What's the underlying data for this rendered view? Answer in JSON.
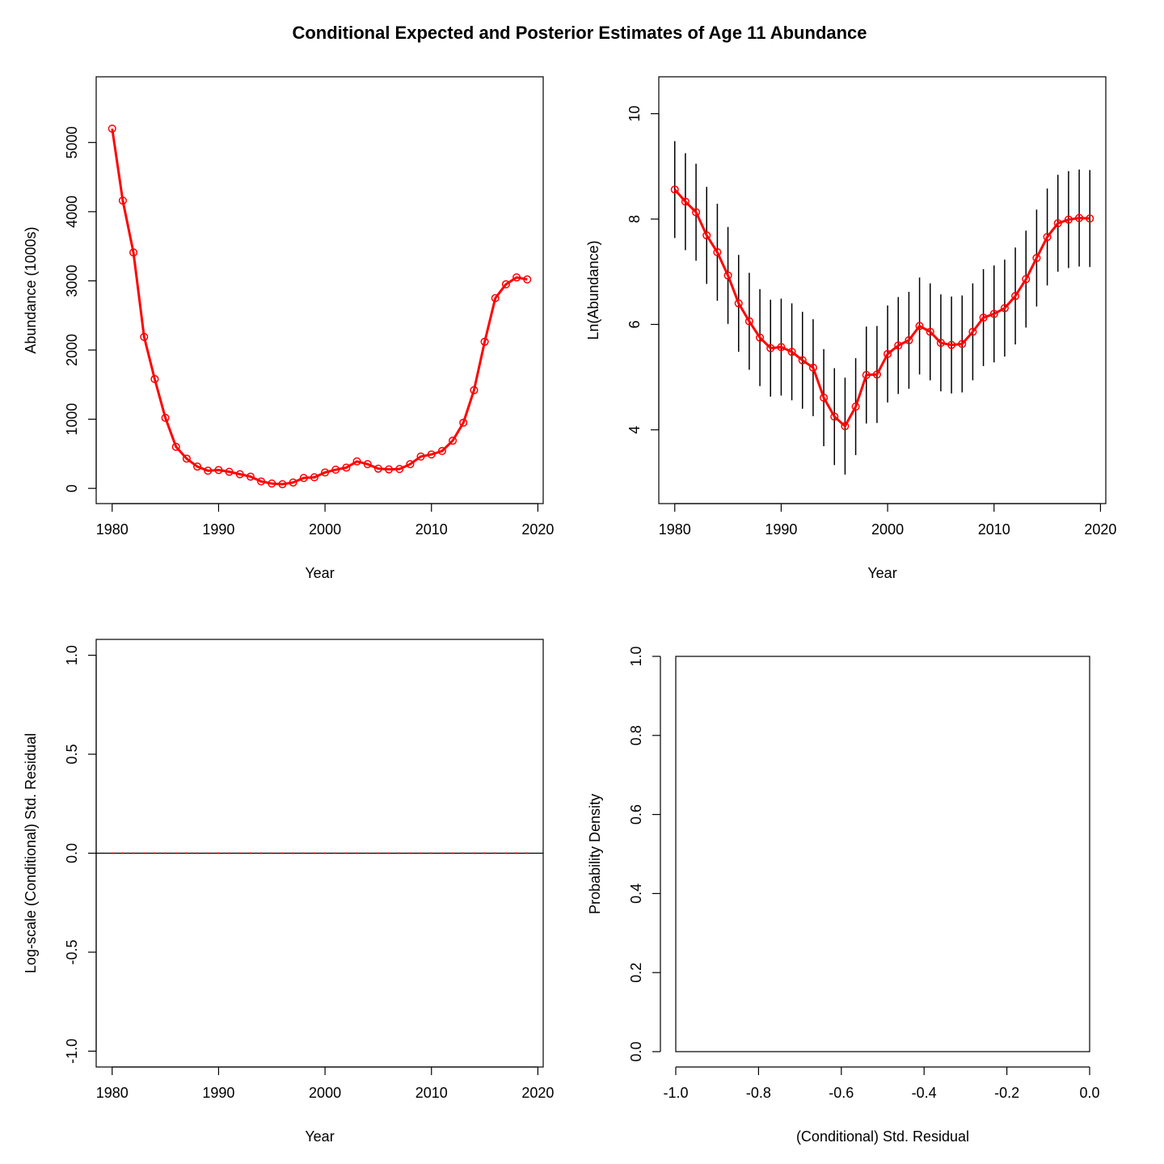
{
  "title": "Conditional Expected and Posterior Estimates of Age 11 Abundance",
  "chart_data": [
    {
      "type": "line",
      "xlabel": "Year",
      "ylabel": "Abundance (1000s)",
      "xlim": [
        1978.5,
        2020.5
      ],
      "ylim": [
        -220,
        5950
      ],
      "xticks": [
        1980,
        1990,
        2000,
        2010,
        2020
      ],
      "yticks": [
        0,
        1000,
        2000,
        3000,
        4000,
        5000
      ],
      "series": [
        {
          "color": "#ff0000",
          "x": [
            1980,
            1981,
            1982,
            1983,
            1984,
            1985,
            1986,
            1987,
            1988,
            1989,
            1990,
            1991,
            1992,
            1993,
            1994,
            1995,
            1996,
            1997,
            1998,
            1999,
            2000,
            2001,
            2002,
            2003,
            2004,
            2005,
            2006,
            2007,
            2008,
            2009,
            2010,
            2011,
            2012,
            2013,
            2014,
            2015,
            2016,
            2017,
            2018,
            2019
          ],
          "y": [
            5200,
            4160,
            3410,
            2190,
            1580,
            1020,
            600,
            430,
            315,
            255,
            265,
            240,
            205,
            170,
            100,
            70,
            60,
            85,
            150,
            160,
            230,
            270,
            300,
            390,
            350,
            285,
            275,
            280,
            350,
            460,
            490,
            540,
            690,
            950,
            1420,
            2120,
            2750,
            2950,
            3050,
            3020
          ]
        }
      ]
    },
    {
      "type": "line",
      "xlabel": "Year",
      "ylabel": "Ln(Abundance)",
      "xlim": [
        1978.5,
        2020.5
      ],
      "ylim": [
        2.6,
        10.7
      ],
      "xticks": [
        1980,
        1990,
        2000,
        2010,
        2020
      ],
      "yticks": [
        4,
        6,
        8,
        10
      ],
      "series": [
        {
          "color": "#ff0000",
          "x": [
            1980,
            1981,
            1982,
            1983,
            1984,
            1985,
            1986,
            1987,
            1988,
            1989,
            1990,
            1991,
            1992,
            1993,
            1994,
            1995,
            1996,
            1997,
            1998,
            1999,
            2000,
            2001,
            2002,
            2003,
            2004,
            2005,
            2006,
            2007,
            2008,
            2009,
            2010,
            2011,
            2012,
            2013,
            2014,
            2015,
            2016,
            2017,
            2018,
            2019
          ],
          "y": [
            8.56,
            8.33,
            8.13,
            7.69,
            7.37,
            6.93,
            6.4,
            6.06,
            5.75,
            5.55,
            5.57,
            5.48,
            5.32,
            5.18,
            4.61,
            4.25,
            4.07,
            4.44,
            5.04,
            5.05,
            5.44,
            5.6,
            5.7,
            5.97,
            5.86,
            5.65,
            5.61,
            5.63,
            5.86,
            6.13,
            6.2,
            6.31,
            6.54,
            6.86,
            7.26,
            7.66,
            7.92,
            7.99,
            8.02,
            8.01
          ]
        }
      ],
      "error_bars": {
        "color": "#000000",
        "lower": [
          7.64,
          7.41,
          7.21,
          6.77,
          6.45,
          6.01,
          5.48,
          5.14,
          4.83,
          4.63,
          4.65,
          4.56,
          4.4,
          4.26,
          3.69,
          3.33,
          3.15,
          3.52,
          4.12,
          4.13,
          4.52,
          4.68,
          4.78,
          5.05,
          4.94,
          4.73,
          4.69,
          4.71,
          4.94,
          5.21,
          5.28,
          5.39,
          5.62,
          5.94,
          6.34,
          6.74,
          7.0,
          7.07,
          7.1,
          7.09
        ],
        "upper": [
          9.48,
          9.25,
          9.05,
          8.61,
          8.29,
          7.85,
          7.32,
          6.98,
          6.67,
          6.47,
          6.49,
          6.4,
          6.24,
          6.1,
          5.53,
          5.17,
          4.99,
          5.36,
          5.96,
          5.97,
          6.36,
          6.52,
          6.62,
          6.89,
          6.78,
          6.57,
          6.53,
          6.55,
          6.78,
          7.05,
          7.12,
          7.23,
          7.46,
          7.78,
          8.18,
          8.58,
          8.84,
          8.91,
          8.94,
          8.93
        ]
      }
    },
    {
      "type": "scatter",
      "xlabel": "Year",
      "ylabel": "Log-scale (Conditional) Std. Residual",
      "xlim": [
        1978.5,
        2020.5
      ],
      "ylim": [
        -1.08,
        1.08
      ],
      "xticks": [
        1980,
        1990,
        2000,
        2010,
        2020
      ],
      "yticks": [
        -1.0,
        -0.5,
        0.0,
        0.5,
        1.0
      ],
      "ytick_labels": [
        "-1.0",
        "-0.5",
        "0.0",
        "0.5",
        "1.0"
      ],
      "reference_line": 0,
      "series": [
        {
          "color": "#ff0000",
          "x": [
            1980,
            1981,
            1982,
            1983,
            1984,
            1985,
            1986,
            1987,
            1988,
            1989,
            1990,
            1991,
            1992,
            1993,
            1994,
            1995,
            1996,
            1997,
            1998,
            1999,
            2000,
            2001,
            2002,
            2003,
            2004,
            2005,
            2006,
            2007,
            2008,
            2009,
            2010,
            2011,
            2012,
            2013,
            2014,
            2015,
            2016,
            2017,
            2018,
            2019
          ],
          "y": [
            0,
            0,
            0,
            0,
            0,
            0,
            0,
            0,
            0,
            0,
            0,
            0,
            0,
            0,
            0,
            0,
            0,
            0,
            0,
            0,
            0,
            0,
            0,
            0,
            0,
            0,
            0,
            0,
            0,
            0,
            0,
            0,
            0,
            0,
            0,
            0,
            0,
            0,
            0,
            0
          ]
        }
      ]
    },
    {
      "type": "histogram",
      "xlabel": "(Conditional) Std. Residual",
      "ylabel": "Probability Density",
      "xlim": [
        -1.0,
        0.0
      ],
      "ylim": [
        0.0,
        1.0
      ],
      "xticks": [
        -1.0,
        -0.8,
        -0.6,
        -0.4,
        -0.2,
        0.0
      ],
      "xtick_labels": [
        "-1.0",
        "-0.8",
        "-0.6",
        "-0.4",
        "-0.2",
        "0.0"
      ],
      "yticks": [
        0.0,
        0.2,
        0.4,
        0.6,
        0.8,
        1.0
      ],
      "ytick_labels": [
        "0.0",
        "0.2",
        "0.4",
        "0.6",
        "0.8",
        "1.0"
      ],
      "bins": [
        {
          "from": -1.0,
          "to": 0.0,
          "density": 1.0
        }
      ]
    }
  ]
}
